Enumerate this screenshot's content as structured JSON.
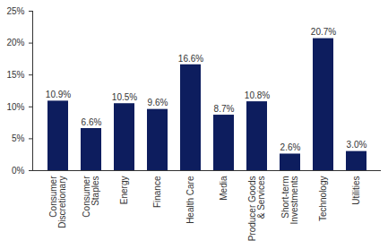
{
  "chart_data": {
    "type": "bar",
    "categories": [
      "Consumer Discretionary",
      "Consumer Staples",
      "Energy",
      "Finance",
      "Health Care",
      "Media",
      "Producer Goods & Services",
      "Short-term Investments",
      "Technology",
      "Utilities"
    ],
    "values": [
      10.9,
      6.6,
      10.5,
      9.6,
      16.6,
      8.7,
      10.8,
      2.6,
      20.7,
      3.0
    ],
    "value_labels": [
      "10.9%",
      "6.6%",
      "10.5%",
      "9.6%",
      "16.6%",
      "8.7%",
      "10.8%",
      "2.6%",
      "20.7%",
      "3.0%"
    ],
    "data_labels": true,
    "color": "#0d1d5e",
    "ylim": [
      0,
      25
    ],
    "yticks": [
      {
        "value": 0,
        "label": "0%"
      },
      {
        "value": 5,
        "label": "5%"
      },
      {
        "value": 10,
        "label": "10%"
      },
      {
        "value": 15,
        "label": "15%"
      },
      {
        "value": 20,
        "label": "20%"
      },
      {
        "value": 25,
        "label": "25%"
      }
    ],
    "grid": false
  }
}
